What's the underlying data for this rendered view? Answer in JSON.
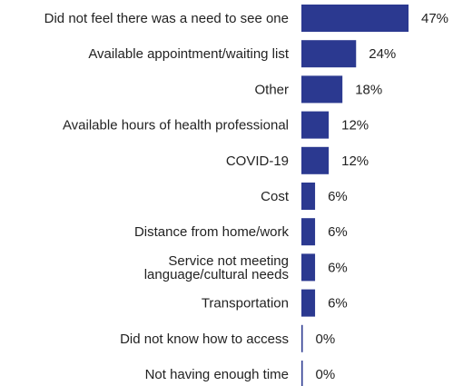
{
  "chart_data": {
    "type": "bar",
    "orientation": "horizontal",
    "categories": [
      [
        "Did not feel there was a need to see one"
      ],
      [
        "Available appointment/waiting list"
      ],
      [
        "Other"
      ],
      [
        "Available hours of health professional"
      ],
      [
        "COVID-19"
      ],
      [
        "Cost"
      ],
      [
        "Distance from home/work"
      ],
      [
        "Service not meeting",
        "language/cultural needs"
      ],
      [
        "Transportation"
      ],
      [
        "Did not know how to access"
      ],
      [
        "Not having enough time"
      ]
    ],
    "values": [
      47,
      24,
      18,
      12,
      12,
      6,
      6,
      6,
      6,
      0,
      0
    ],
    "value_labels": [
      "47%",
      "24%",
      "18%",
      "12%",
      "12%",
      "6%",
      "6%",
      "6%",
      "6%",
      "0%",
      "0%"
    ],
    "unit": "%",
    "bar_color": "#2b3990",
    "xlim": [
      0,
      47
    ],
    "title": "",
    "xlabel": "",
    "ylabel": "",
    "grid": false,
    "legend": "none"
  }
}
